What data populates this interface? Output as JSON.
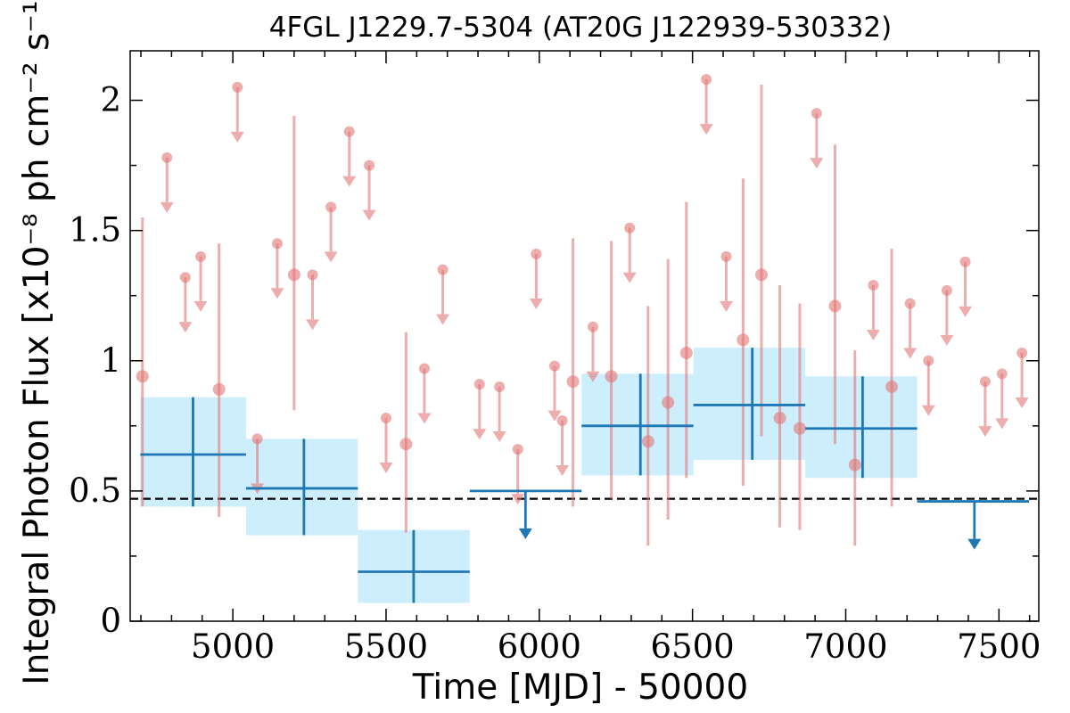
{
  "chart_data": {
    "type": "scatter",
    "title": "4FGL J1229.7-5304 (AT20G J122939-530332)",
    "xlabel": "Time [MJD] - 50000",
    "ylabel": "Integral Photon Flux [x10⁻⁸ ph cm⁻² s⁻¹]",
    "xlim": [
      4665,
      7630
    ],
    "ylim": [
      0,
      2.19
    ],
    "x_ticks": [
      5000,
      5500,
      6000,
      6500,
      7000,
      7500
    ],
    "x_tick_labels": [
      "5000",
      "5500",
      "6000",
      "6500",
      "7000",
      "7500"
    ],
    "y_ticks": [
      0,
      0.5,
      1,
      1.5,
      2
    ],
    "y_tick_labels": [
      "0",
      "0.5",
      "1",
      "1.5",
      "2"
    ],
    "grid": false,
    "reference_line": {
      "y": 0.47,
      "style": "dashed",
      "color": "#000000"
    },
    "colors": {
      "fine_bins": "#e37777",
      "coarse_bins": "#1f77b4",
      "coarse_band": "#cdeefc"
    },
    "series": [
      {
        "kind": "coarse-detections",
        "points": [
          {
            "x0": 4698,
            "x1": 5043,
            "x": 4870,
            "y": 0.64,
            "ylo": 0.44,
            "yhi": 0.86
          },
          {
            "x0": 5043,
            "x1": 5408,
            "x": 5232,
            "y": 0.51,
            "ylo": 0.33,
            "yhi": 0.7
          },
          {
            "x0": 5408,
            "x1": 5773,
            "x": 5590,
            "y": 0.19,
            "ylo": 0.07,
            "yhi": 0.35
          },
          {
            "x0": 6138,
            "x1": 6503,
            "x": 6330,
            "y": 0.75,
            "ylo": 0.56,
            "yhi": 0.95
          },
          {
            "x0": 6503,
            "x1": 6868,
            "x": 6695,
            "y": 0.83,
            "ylo": 0.62,
            "yhi": 1.05
          },
          {
            "x0": 6868,
            "x1": 7233,
            "x": 7055,
            "y": 0.74,
            "ylo": 0.55,
            "yhi": 0.94
          }
        ]
      },
      {
        "kind": "coarse-upper-limits",
        "points": [
          {
            "x0": 5773,
            "x1": 6138,
            "x": 5955,
            "y": 0.5
          },
          {
            "x0": 7233,
            "x1": 7598,
            "x": 7420,
            "y": 0.46
          }
        ]
      },
      {
        "kind": "fine-detections",
        "points": [
          {
            "x": 4705,
            "y": 0.94,
            "ylo": 0.44,
            "yhi": 1.55
          },
          {
            "x": 4955,
            "y": 0.89,
            "ylo": 0.4,
            "yhi": 1.45
          },
          {
            "x": 5200,
            "y": 1.33,
            "ylo": 0.81,
            "yhi": 1.94
          },
          {
            "x": 5565,
            "y": 0.68,
            "ylo": 0.34,
            "yhi": 1.11
          },
          {
            "x": 6110,
            "y": 0.92,
            "ylo": 0.44,
            "yhi": 1.47
          },
          {
            "x": 6235,
            "y": 0.94,
            "ylo": 0.47,
            "yhi": 1.46
          },
          {
            "x": 6355,
            "y": 0.69,
            "ylo": 0.29,
            "yhi": 1.21
          },
          {
            "x": 6420,
            "y": 0.84,
            "ylo": 0.39,
            "yhi": 1.39
          },
          {
            "x": 6480,
            "y": 1.03,
            "ylo": 0.55,
            "yhi": 1.61
          },
          {
            "x": 6665,
            "y": 1.08,
            "ylo": 0.52,
            "yhi": 1.7
          },
          {
            "x": 6725,
            "y": 1.33,
            "ylo": 0.71,
            "yhi": 2.06
          },
          {
            "x": 6785,
            "y": 0.78,
            "ylo": 0.36,
            "yhi": 1.29
          },
          {
            "x": 6850,
            "y": 0.74,
            "ylo": 0.35,
            "yhi": 1.22
          },
          {
            "x": 6965,
            "y": 1.21,
            "ylo": 0.68,
            "yhi": 1.83
          },
          {
            "x": 7030,
            "y": 0.6,
            "ylo": 0.29,
            "yhi": 1.04
          },
          {
            "x": 7150,
            "y": 0.9,
            "ylo": 0.44,
            "yhi": 1.43
          }
        ]
      },
      {
        "kind": "fine-upper-limits",
        "points": [
          {
            "x": 4785,
            "y": 1.78
          },
          {
            "x": 4845,
            "y": 1.32
          },
          {
            "x": 4895,
            "y": 1.4
          },
          {
            "x": 5015,
            "y": 2.05
          },
          {
            "x": 5080,
            "y": 0.7
          },
          {
            "x": 5145,
            "y": 1.45
          },
          {
            "x": 5260,
            "y": 1.33
          },
          {
            "x": 5320,
            "y": 1.59
          },
          {
            "x": 5380,
            "y": 1.88
          },
          {
            "x": 5445,
            "y": 1.75
          },
          {
            "x": 5500,
            "y": 0.78
          },
          {
            "x": 5625,
            "y": 0.97
          },
          {
            "x": 5685,
            "y": 1.35
          },
          {
            "x": 5805,
            "y": 0.91
          },
          {
            "x": 5870,
            "y": 0.9
          },
          {
            "x": 5930,
            "y": 0.66
          },
          {
            "x": 5990,
            "y": 1.41
          },
          {
            "x": 6050,
            "y": 0.98
          },
          {
            "x": 6075,
            "y": 0.77
          },
          {
            "x": 6175,
            "y": 1.13
          },
          {
            "x": 6295,
            "y": 1.51
          },
          {
            "x": 6545,
            "y": 2.08
          },
          {
            "x": 6610,
            "y": 1.4
          },
          {
            "x": 6905,
            "y": 1.95
          },
          {
            "x": 7090,
            "y": 1.29
          },
          {
            "x": 7210,
            "y": 1.22
          },
          {
            "x": 7270,
            "y": 1.0
          },
          {
            "x": 7330,
            "y": 1.27
          },
          {
            "x": 7390,
            "y": 1.38
          },
          {
            "x": 7455,
            "y": 0.92
          },
          {
            "x": 7510,
            "y": 0.95
          },
          {
            "x": 7575,
            "y": 1.03
          }
        ]
      }
    ]
  }
}
